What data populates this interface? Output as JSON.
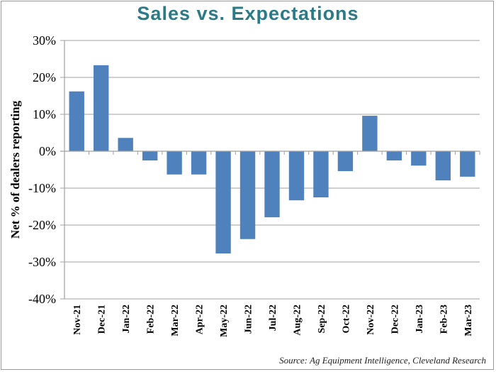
{
  "chart_data": {
    "type": "bar",
    "title": "Sales vs. Expectations",
    "xlabel": "",
    "ylabel": "Net % of dealers reporting",
    "categories": [
      "Nov-21",
      "Dec-21",
      "Jan-22",
      "Feb-22",
      "Mar-22",
      "Apr-22",
      "May-22",
      "Jun-22",
      "Jul-22",
      "Aug-22",
      "Sep-22",
      "Oct-22",
      "Nov-22",
      "Dec-22",
      "Jan-23",
      "Feb-23",
      "Mar-23"
    ],
    "values": [
      16.2,
      23.3,
      3.6,
      -2.5,
      -6.3,
      -6.3,
      -27.7,
      -23.8,
      -17.9,
      -13.3,
      -12.5,
      -5.4,
      9.6,
      -2.5,
      -3.9,
      -7.9,
      -6.9
    ],
    "ylim": [
      -40,
      30
    ],
    "yticks": [
      30,
      20,
      10,
      0,
      -10,
      -20,
      -30,
      -40
    ],
    "ytick_labels": [
      "30%",
      "20%",
      "10%",
      "0%",
      "-10%",
      "-20%",
      "-30%",
      "-40%"
    ],
    "grid": true,
    "legend": "none",
    "bar_color": "#4f81bd",
    "source": "Source: Ag Equipment Intelligence, Cleveland Research"
  }
}
